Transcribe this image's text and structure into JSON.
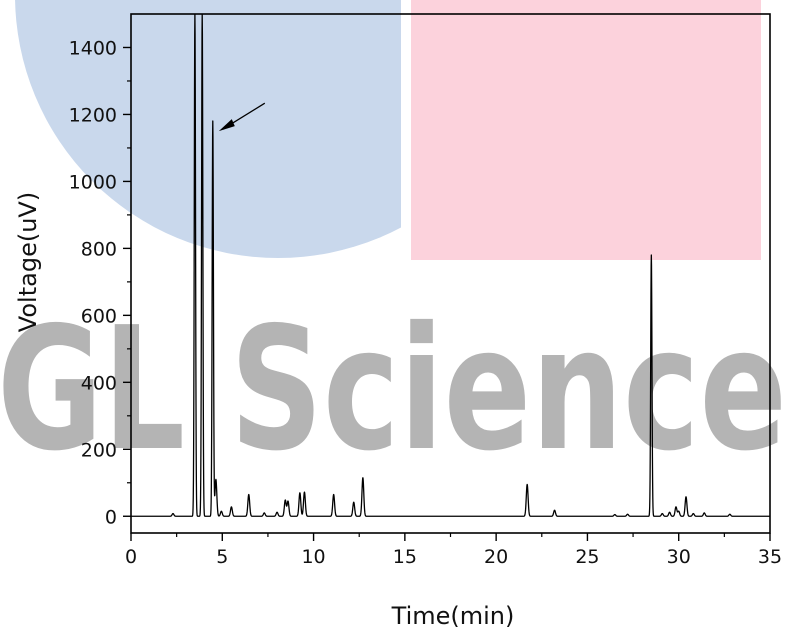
{
  "watermark": {
    "text": "GL Science",
    "colors": {
      "circle": "#c9d8ec",
      "rect": "#fcd2dc",
      "text": "#b4b4b4"
    }
  },
  "chart_data": {
    "type": "line",
    "xlabel": "Time(min)",
    "ylabel": "Voltage(uV)",
    "xlim": [
      0,
      35
    ],
    "ylim": [
      -50,
      1500
    ],
    "xticks": [
      0,
      5,
      10,
      15,
      20,
      25,
      30,
      35
    ],
    "yticks": [
      0,
      200,
      400,
      600,
      800,
      1000,
      1200,
      1400
    ],
    "grid": false,
    "line_color": "#000000",
    "baseline": 0,
    "peaks": [
      {
        "x": 2.3,
        "y": 8
      },
      {
        "x": 3.5,
        "y": 1500
      },
      {
        "x": 3.9,
        "y": 1500
      },
      {
        "x": 4.48,
        "y": 1180
      },
      {
        "x": 4.65,
        "y": 110
      },
      {
        "x": 4.95,
        "y": 15
      },
      {
        "x": 5.5,
        "y": 28
      },
      {
        "x": 6.45,
        "y": 65
      },
      {
        "x": 7.3,
        "y": 10
      },
      {
        "x": 8.0,
        "y": 12
      },
      {
        "x": 8.45,
        "y": 48
      },
      {
        "x": 8.6,
        "y": 45
      },
      {
        "x": 9.25,
        "y": 70
      },
      {
        "x": 9.5,
        "y": 72
      },
      {
        "x": 11.1,
        "y": 65
      },
      {
        "x": 12.2,
        "y": 42
      },
      {
        "x": 12.7,
        "y": 115
      },
      {
        "x": 21.7,
        "y": 95
      },
      {
        "x": 23.2,
        "y": 18
      },
      {
        "x": 26.5,
        "y": 5
      },
      {
        "x": 27.2,
        "y": 6
      },
      {
        "x": 28.5,
        "y": 780
      },
      {
        "x": 29.1,
        "y": 8
      },
      {
        "x": 29.5,
        "y": 12
      },
      {
        "x": 29.85,
        "y": 28
      },
      {
        "x": 30.0,
        "y": 15
      },
      {
        "x": 30.4,
        "y": 58
      },
      {
        "x": 30.8,
        "y": 8
      },
      {
        "x": 31.4,
        "y": 10
      },
      {
        "x": 32.8,
        "y": 6
      }
    ],
    "annotation": {
      "type": "arrow",
      "target": {
        "x": 4.48,
        "y": 1180
      }
    }
  }
}
